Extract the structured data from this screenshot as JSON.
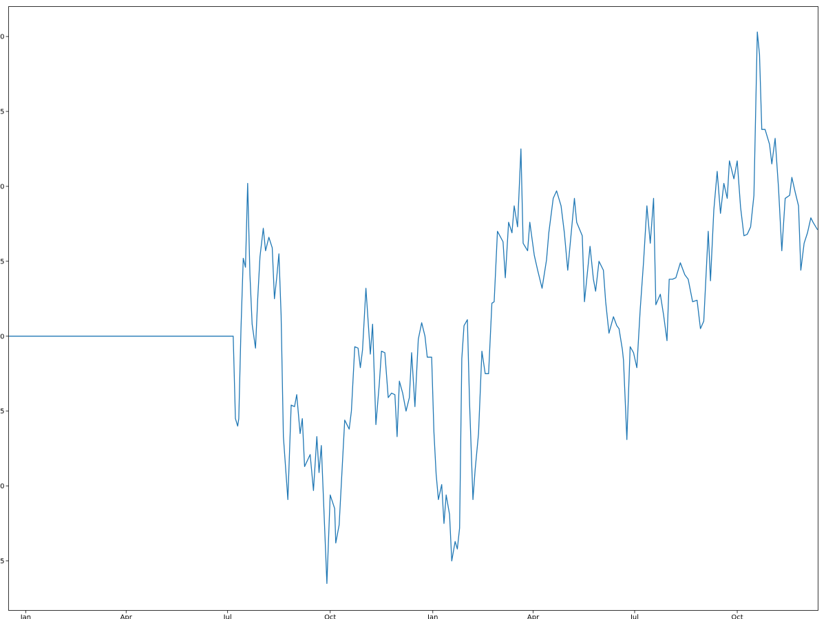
{
  "chart_data": {
    "type": "line",
    "series": [
      {
        "color": "#1f77b4",
        "x": [
          -15,
          186,
          188,
          190,
          191,
          193,
          195,
          197,
          199,
          201,
          203,
          206,
          208,
          210,
          213,
          215,
          218,
          221,
          223,
          225,
          227,
          229,
          231,
          235,
          238,
          241,
          243,
          246,
          248,
          250,
          255,
          258,
          261,
          263,
          265,
          270,
          273,
          277,
          278,
          281,
          286,
          290,
          292,
          295,
          298,
          300,
          302,
          305,
          309,
          311,
          314,
          317,
          319,
          322,
          325,
          328,
          331,
          333,
          335,
          338,
          341,
          344,
          346,
          349,
          352,
          355,
          358,
          360,
          364,
          366,
          368,
          370,
          373,
          375,
          377,
          380,
          382,
          385,
          387,
          389,
          391,
          393,
          396,
          398,
          401,
          403,
          406,
          409,
          412,
          415,
          418,
          420,
          423,
          428,
          430,
          433,
          436,
          438,
          441,
          444,
          446,
          450,
          452,
          456,
          459,
          463,
          467,
          469,
          473,
          476,
          480,
          483,
          486,
          490,
          492,
          494,
          499,
          501,
          506,
          509,
          511,
          514,
          518,
          520,
          523,
          527,
          530,
          532,
          535,
          536,
          539,
          542,
          545,
          548,
          551,
          554,
          557,
          560,
          563,
          565,
          569,
          572,
          575,
          577,
          580,
          583,
          587,
          591,
          594,
          598,
          602,
          605,
          608,
          612,
          614,
          617,
          620,
          623,
          626,
          629,
          631,
          635,
          638,
          641,
          644,
          647,
          650,
          653,
          656,
          658,
          660,
          663,
          667,
          669,
          672,
          675,
          678,
          681,
          685,
          687,
          690,
          693,
          695,
          698,
          701,
          704,
          706,
          710
        ],
        "values": [
          0,
          0,
          -5.5,
          -6.0,
          -5.5,
          0.5,
          5.2,
          4.6,
          10.2,
          4.1,
          0.8,
          -0.8,
          2.5,
          5.3,
          7.2,
          5.7,
          6.6,
          5.9,
          2.5,
          3.9,
          5.5,
          1.4,
          -6.7,
          -10.9,
          -4.6,
          -4.7,
          -3.9,
          -6.5,
          -5.5,
          -8.7,
          -7.9,
          -10.3,
          -6.7,
          -9.1,
          -7.3,
          -16.5,
          -10.6,
          -11.5,
          -13.8,
          -12.6,
          -5.6,
          -6.2,
          -5.0,
          -0.7,
          -0.8,
          -2.1,
          -0.9,
          3.2,
          -1.2,
          0.8,
          -5.9,
          -3.2,
          -1.0,
          -1.1,
          -4.1,
          -3.8,
          -3.9,
          -6.7,
          -3.0,
          -3.8,
          -5.0,
          -4.1,
          -1.1,
          -4.7,
          -0.2,
          0.9,
          0,
          -1.4,
          -1.4,
          -6.4,
          -9.2,
          -10.9,
          -9.9,
          -12.5,
          -10.6,
          -11.9,
          -15.0,
          -13.7,
          -14.2,
          -12.8,
          -1.5,
          0.7,
          1.1,
          -4.5,
          -10.9,
          -8.9,
          -6.5,
          -1.0,
          -2.5,
          -2.5,
          2.2,
          2.3,
          7.0,
          6.3,
          3.9,
          7.6,
          6.9,
          8.7,
          7.3,
          12.5,
          6.2,
          5.7,
          7.6,
          5.4,
          4.4,
          3.2,
          5.1,
          6.9,
          9.2,
          9.7,
          8.7,
          6.9,
          4.4,
          7.6,
          9.2,
          7.6,
          6.7,
          2.3,
          6.0,
          3.8,
          3.0,
          5.0,
          4.4,
          2.3,
          0.2,
          1.3,
          0.7,
          0.5,
          -0.9,
          -1.6,
          -6.9,
          -0.7,
          -1.1,
          -2.1,
          1.8,
          5.0,
          8.7,
          6.2,
          9.2,
          2.1,
          2.8,
          1.4,
          -0.3,
          3.8,
          3.8,
          3.9,
          4.9,
          4.1,
          3.8,
          2.3,
          2.4,
          0.5,
          1.0,
          7.0,
          3.7,
          8.4,
          11.0,
          8.2,
          10.2,
          9.2,
          11.7,
          10.5,
          11.7,
          8.6,
          6.7,
          6.8,
          7.3,
          9.4,
          20.3,
          18.8,
          13.8,
          13.8,
          12.8,
          11.5,
          13.2,
          9.9,
          5.7,
          9.2,
          9.4,
          10.6,
          9.6,
          8.7,
          4.4,
          6.2,
          6.9,
          7.9,
          7.6,
          7.1
        ]
      }
    ],
    "xlim": [
      -15.4,
      710.5
    ],
    "xticks": [
      {
        "value": 0,
        "label": "Jan"
      },
      {
        "value": 90,
        "label": "Apr"
      },
      {
        "value": 181,
        "label": "Jul"
      },
      {
        "value": 273,
        "label": "Oct"
      },
      {
        "value": 365,
        "label": "Jan"
      },
      {
        "value": 455,
        "label": "Apr"
      },
      {
        "value": 546,
        "label": "Jul"
      },
      {
        "value": 638,
        "label": "Oct"
      }
    ],
    "ylim": [
      -18.3,
      22.0
    ],
    "yticks": [
      {
        "value": -15,
        "label": "5"
      },
      {
        "value": -10,
        "label": "0"
      },
      {
        "value": -5,
        "label": "5"
      },
      0,
      {
        "value": 5,
        "label": "5"
      },
      {
        "value": 10,
        "label": "0"
      },
      {
        "value": 15,
        "label": "5"
      },
      {
        "value": 20,
        "label": "0"
      }
    ]
  }
}
